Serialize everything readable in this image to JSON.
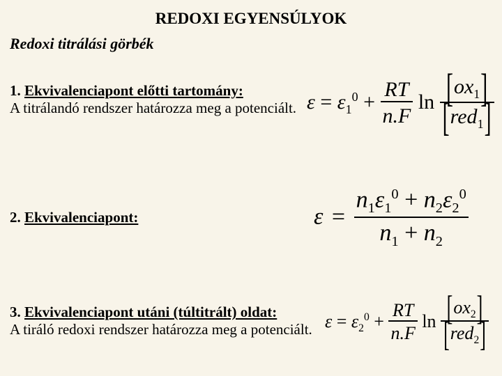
{
  "title": "REDOXI EGYENSÚLYOK",
  "subtitle": "Redoxi titrálási görbék",
  "sections": [
    {
      "num": "1.",
      "heading": "Ekvivalenciapont előtti tartomány:",
      "body": "A titrálandó rendszer határozza meg a potenciált."
    },
    {
      "num": "2.",
      "heading": "Ekvivalenciapont:",
      "body": ""
    },
    {
      "num": "3.",
      "heading": "Ekvivalenciapont utáni (túltitrált) oldat:",
      "body": "A tiráló redoxi rendszer határozza meg a potenciált."
    }
  ],
  "equations": {
    "eq1": {
      "symbol": "ε",
      "eq": "=",
      "eps": "ε",
      "sub1": "1",
      "sup0": "0",
      "plus": "+",
      "RT": "RT",
      "nF": "n.F",
      "ln": "ln",
      "ox": "ox",
      "oxsub": "1",
      "red": "red",
      "redsub": "1",
      "colors": {
        "text": "#000000"
      }
    },
    "eq2": {
      "symbol": "ε",
      "eq": "=",
      "n1": "n",
      "s1": "1",
      "e1": "ε",
      "es1": "1",
      "z1": "0",
      "plus": "+",
      "n2": "n",
      "s2": "2",
      "e2": "ε",
      "es2": "2",
      "z2": "0",
      "dn1": "n",
      "ds1": "1",
      "dplus": "+",
      "dn2": "n",
      "ds2": "2"
    },
    "eq3": {
      "symbol": "ε",
      "eq": "=",
      "eps": "ε",
      "sub2": "2",
      "sup0": "0",
      "plus": "+",
      "RT": "RT",
      "nF": "n.F",
      "ln": "ln",
      "ox": "ox",
      "oxsub": "2",
      "red": "red",
      "redsub": "2"
    }
  },
  "style": {
    "background_color": "#f8f4e9",
    "text_color": "#000000",
    "title_fontsize": 23,
    "subtitle_fontsize": 22,
    "body_fontsize": 21,
    "eq1_fontsize": 30,
    "eq2_fontsize": 34,
    "eq3_fontsize": 26,
    "font_family": "Times New Roman"
  }
}
